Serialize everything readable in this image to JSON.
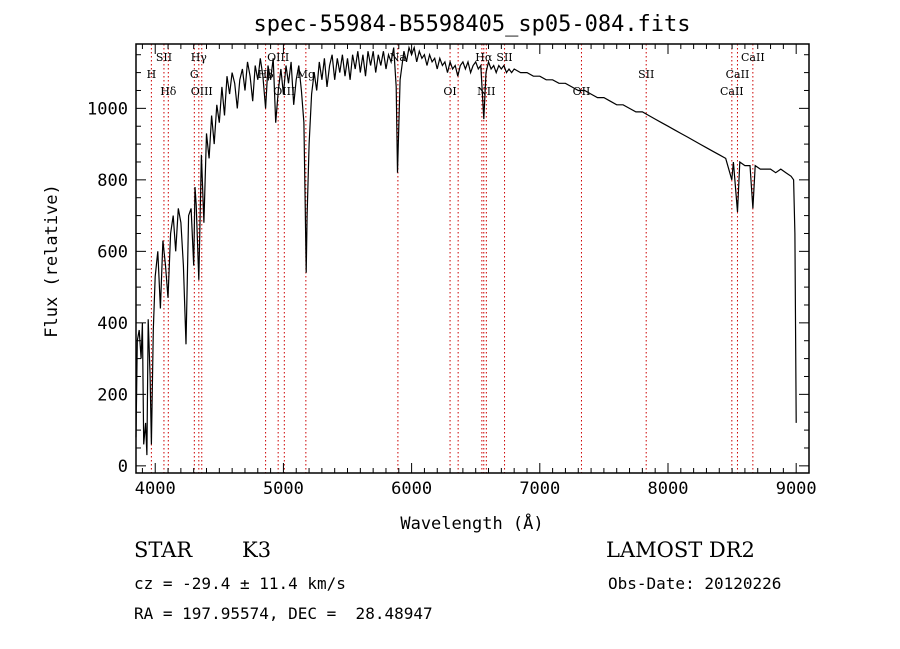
{
  "chart_data": {
    "type": "line",
    "title": "spec-55984-B5598405_sp05-084.fits",
    "xlabel": "Wavelength (Å)",
    "ylabel": "Flux (relative)",
    "xlim": [
      3850,
      9100
    ],
    "ylim": [
      -20,
      1180
    ],
    "xticks": [
      4000,
      5000,
      6000,
      7000,
      8000,
      9000
    ],
    "yticks": [
      0,
      200,
      400,
      600,
      800,
      1000
    ],
    "series": [
      {
        "points": [
          [
            3850,
            80
          ],
          [
            3860,
            350
          ],
          [
            3875,
            380
          ],
          [
            3890,
            300
          ],
          [
            3900,
            400
          ],
          [
            3910,
            60
          ],
          [
            3925,
            120
          ],
          [
            3935,
            30
          ],
          [
            3945,
            410
          ],
          [
            3960,
            250
          ],
          [
            3970,
            60
          ],
          [
            3985,
            380
          ],
          [
            4000,
            530
          ],
          [
            4020,
            600
          ],
          [
            4040,
            440
          ],
          [
            4060,
            630
          ],
          [
            4080,
            560
          ],
          [
            4100,
            470
          ],
          [
            4120,
            650
          ],
          [
            4140,
            700
          ],
          [
            4160,
            600
          ],
          [
            4180,
            720
          ],
          [
            4200,
            680
          ],
          [
            4220,
            560
          ],
          [
            4240,
            340
          ],
          [
            4260,
            700
          ],
          [
            4280,
            720
          ],
          [
            4300,
            560
          ],
          [
            4310,
            780
          ],
          [
            4320,
            730
          ],
          [
            4340,
            520
          ],
          [
            4360,
            870
          ],
          [
            4380,
            680
          ],
          [
            4400,
            930
          ],
          [
            4420,
            860
          ],
          [
            4440,
            980
          ],
          [
            4460,
            900
          ],
          [
            4480,
            1010
          ],
          [
            4500,
            960
          ],
          [
            4520,
            1060
          ],
          [
            4540,
            980
          ],
          [
            4560,
            1090
          ],
          [
            4580,
            1040
          ],
          [
            4600,
            1100
          ],
          [
            4620,
            1070
          ],
          [
            4640,
            1000
          ],
          [
            4660,
            1080
          ],
          [
            4680,
            1110
          ],
          [
            4700,
            1050
          ],
          [
            4720,
            1130
          ],
          [
            4740,
            1090
          ],
          [
            4760,
            1020
          ],
          [
            4780,
            1120
          ],
          [
            4800,
            1080
          ],
          [
            4820,
            1140
          ],
          [
            4840,
            1090
          ],
          [
            4861,
            1000
          ],
          [
            4880,
            1120
          ],
          [
            4900,
            1080
          ],
          [
            4920,
            1140
          ],
          [
            4940,
            960
          ],
          [
            4960,
            1050
          ],
          [
            4980,
            1110
          ],
          [
            5000,
            1040
          ],
          [
            5020,
            1120
          ],
          [
            5040,
            1070
          ],
          [
            5060,
            1130
          ],
          [
            5080,
            1010
          ],
          [
            5100,
            1080
          ],
          [
            5120,
            1120
          ],
          [
            5140,
            1050
          ],
          [
            5160,
            960
          ],
          [
            5170,
            730
          ],
          [
            5178,
            540
          ],
          [
            5185,
            700
          ],
          [
            5200,
            900
          ],
          [
            5220,
            1040
          ],
          [
            5240,
            1100
          ],
          [
            5260,
            1050
          ],
          [
            5280,
            1130
          ],
          [
            5300,
            1080
          ],
          [
            5320,
            1140
          ],
          [
            5340,
            1060
          ],
          [
            5360,
            1120
          ],
          [
            5380,
            1150
          ],
          [
            5400,
            1080
          ],
          [
            5420,
            1140
          ],
          [
            5440,
            1100
          ],
          [
            5460,
            1150
          ],
          [
            5480,
            1090
          ],
          [
            5500,
            1140
          ],
          [
            5520,
            1080
          ],
          [
            5540,
            1150
          ],
          [
            5560,
            1110
          ],
          [
            5580,
            1160
          ],
          [
            5600,
            1100
          ],
          [
            5620,
            1150
          ],
          [
            5640,
            1090
          ],
          [
            5660,
            1160
          ],
          [
            5680,
            1120
          ],
          [
            5700,
            1160
          ],
          [
            5720,
            1100
          ],
          [
            5740,
            1150
          ],
          [
            5760,
            1120
          ],
          [
            5780,
            1160
          ],
          [
            5800,
            1110
          ],
          [
            5820,
            1150
          ],
          [
            5840,
            1130
          ],
          [
            5860,
            1170
          ],
          [
            5880,
            1060
          ],
          [
            5890,
            820
          ],
          [
            5896,
            900
          ],
          [
            5910,
            1080
          ],
          [
            5940,
            1160
          ],
          [
            5960,
            1130
          ],
          [
            5980,
            1170
          ],
          [
            6000,
            1150
          ],
          [
            6020,
            1170
          ],
          [
            6040,
            1130
          ],
          [
            6060,
            1160
          ],
          [
            6080,
            1140
          ],
          [
            6100,
            1150
          ],
          [
            6120,
            1120
          ],
          [
            6140,
            1150
          ],
          [
            6160,
            1130
          ],
          [
            6180,
            1140
          ],
          [
            6200,
            1110
          ],
          [
            6220,
            1140
          ],
          [
            6240,
            1120
          ],
          [
            6260,
            1130
          ],
          [
            6280,
            1100
          ],
          [
            6300,
            1130
          ],
          [
            6320,
            1110
          ],
          [
            6340,
            1120
          ],
          [
            6360,
            1090
          ],
          [
            6380,
            1120
          ],
          [
            6400,
            1130
          ],
          [
            6420,
            1110
          ],
          [
            6440,
            1130
          ],
          [
            6460,
            1100
          ],
          [
            6480,
            1120
          ],
          [
            6500,
            1130
          ],
          [
            6520,
            1110
          ],
          [
            6540,
            1120
          ],
          [
            6563,
            970
          ],
          [
            6580,
            1100
          ],
          [
            6600,
            1130
          ],
          [
            6620,
            1110
          ],
          [
            6640,
            1120
          ],
          [
            6660,
            1100
          ],
          [
            6680,
            1120
          ],
          [
            6700,
            1110
          ],
          [
            6720,
            1120
          ],
          [
            6740,
            1100
          ],
          [
            6760,
            1110
          ],
          [
            6780,
            1100
          ],
          [
            6800,
            1110
          ],
          [
            6850,
            1100
          ],
          [
            6900,
            1100
          ],
          [
            6950,
            1090
          ],
          [
            7000,
            1090
          ],
          [
            7050,
            1080
          ],
          [
            7100,
            1080
          ],
          [
            7150,
            1070
          ],
          [
            7200,
            1070
          ],
          [
            7250,
            1060
          ],
          [
            7300,
            1050
          ],
          [
            7350,
            1050
          ],
          [
            7400,
            1040
          ],
          [
            7450,
            1030
          ],
          [
            7500,
            1030
          ],
          [
            7550,
            1020
          ],
          [
            7600,
            1010
          ],
          [
            7650,
            1010
          ],
          [
            7700,
            1000
          ],
          [
            7750,
            990
          ],
          [
            7800,
            990
          ],
          [
            7850,
            980
          ],
          [
            7900,
            970
          ],
          [
            7950,
            960
          ],
          [
            8000,
            950
          ],
          [
            8050,
            940
          ],
          [
            8100,
            930
          ],
          [
            8150,
            920
          ],
          [
            8200,
            910
          ],
          [
            8250,
            900
          ],
          [
            8300,
            890
          ],
          [
            8350,
            880
          ],
          [
            8400,
            870
          ],
          [
            8450,
            860
          ],
          [
            8498,
            800
          ],
          [
            8510,
            850
          ],
          [
            8542,
            710
          ],
          [
            8560,
            850
          ],
          [
            8600,
            840
          ],
          [
            8640,
            840
          ],
          [
            8662,
            720
          ],
          [
            8680,
            840
          ],
          [
            8720,
            830
          ],
          [
            8760,
            830
          ],
          [
            8800,
            830
          ],
          [
            8840,
            820
          ],
          [
            8880,
            830
          ],
          [
            8920,
            820
          ],
          [
            8960,
            810
          ],
          [
            8980,
            800
          ],
          [
            8990,
            650
          ],
          [
            9000,
            120
          ]
        ]
      }
    ],
    "annotations": [
      {
        "label": "H",
        "x": 3970,
        "row": 2
      },
      {
        "label": "SII",
        "x": 4068,
        "row": 1
      },
      {
        "label": "Hδ",
        "x": 4102,
        "row": 3
      },
      {
        "label": "Hγ",
        "x": 4340,
        "row": 1
      },
      {
        "label": "G",
        "x": 4305,
        "row": 2
      },
      {
        "label": "OIII",
        "x": 4363,
        "row": 3
      },
      {
        "label": "OIII",
        "x": 4959,
        "row": 1
      },
      {
        "label": "Hβ",
        "x": 4861,
        "row": 2
      },
      {
        "label": "OIII",
        "x": 5007,
        "row": 3
      },
      {
        "label": "Mg",
        "x": 5175,
        "row": 2
      },
      {
        "label": "Na",
        "x": 5893,
        "row": 1
      },
      {
        "label": "OI",
        "x": 6300,
        "row": 3
      },
      {
        "label": "Hα",
        "x": 6563,
        "row": 1
      },
      {
        "label": "SII",
        "x": 6725,
        "row": 1
      },
      {
        "label": "NII",
        "x": 6583,
        "row": 3
      },
      {
        "label": "OII",
        "x": 7325,
        "row": 3
      },
      {
        "label": "SII",
        "x": 7830,
        "row": 2
      },
      {
        "label": "CaII",
        "x": 8662,
        "row": 1
      },
      {
        "label": "CaII",
        "x": 8542,
        "row": 2
      },
      {
        "label": "CaII",
        "x": 8498,
        "row": 3
      }
    ],
    "line_markers": [
      3970,
      4068,
      4102,
      4305,
      4340,
      4363,
      4861,
      4959,
      5007,
      5175,
      5893,
      6300,
      6363,
      6548,
      6563,
      6583,
      6725,
      7325,
      7830,
      8498,
      8542,
      8662
    ],
    "colors": {
      "spectrum": "#000000",
      "line_markers": "#cc0000",
      "frame": "#000000"
    }
  },
  "info": {
    "object_class": "STAR",
    "subclass": "K3",
    "survey": "LAMOST DR2",
    "redshift": "cz = -29.4 ± 11.4 km/s",
    "obs_date": "Obs-Date: 20120226",
    "coords": "RA = 197.95574, DEC =  28.48947"
  }
}
